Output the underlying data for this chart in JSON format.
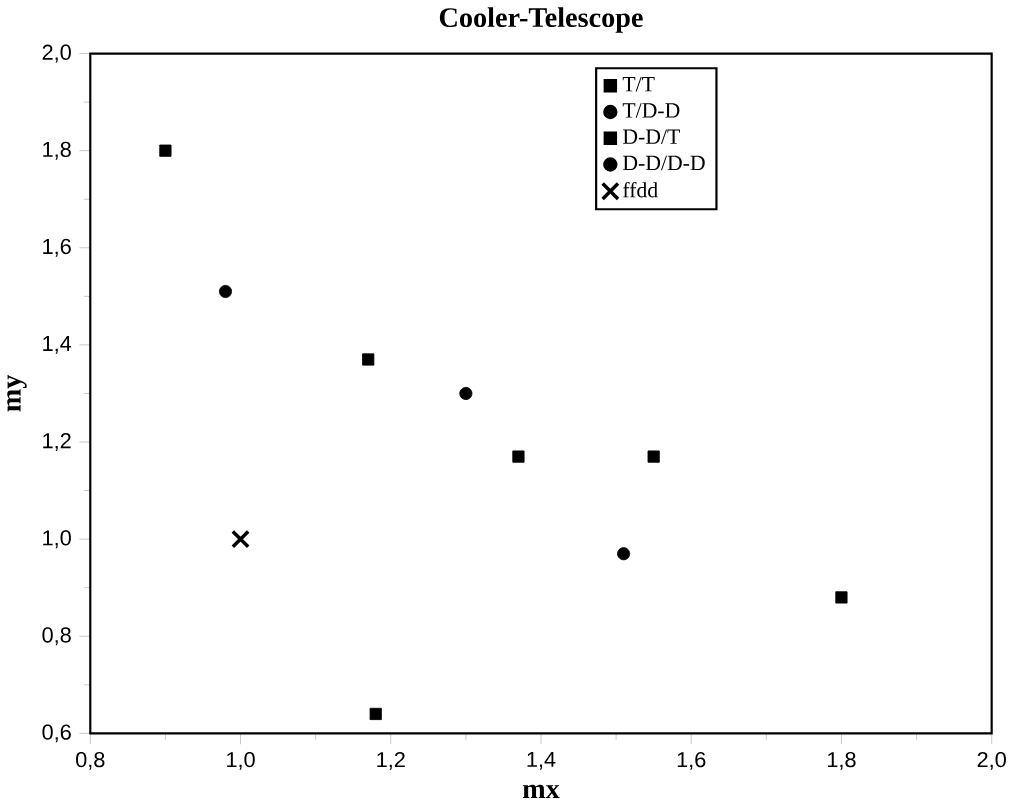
{
  "chart_data": {
    "type": "scatter",
    "title": "Cooler-Telescope",
    "xlabel": "mx",
    "ylabel": "my",
    "xlim": [
      0.8,
      2.0
    ],
    "ylim": [
      0.6,
      2.0
    ],
    "xticks": [
      {
        "value": 0.8,
        "label": "0,8"
      },
      {
        "value": 1.0,
        "label": "1,0"
      },
      {
        "value": 1.2,
        "label": "1,2"
      },
      {
        "value": 1.4,
        "label": "1,4"
      },
      {
        "value": 1.6,
        "label": "1,6"
      },
      {
        "value": 1.8,
        "label": "1,8"
      },
      {
        "value": 2.0,
        "label": "2,0"
      }
    ],
    "yticks": [
      {
        "value": 0.6,
        "label": "0,6"
      },
      {
        "value": 0.8,
        "label": "0,8"
      },
      {
        "value": 1.0,
        "label": "1,0"
      },
      {
        "value": 1.2,
        "label": "1,2"
      },
      {
        "value": 1.4,
        "label": "1,4"
      },
      {
        "value": 1.6,
        "label": "1,6"
      },
      {
        "value": 1.8,
        "label": "1,8"
      },
      {
        "value": 2.0,
        "label": "2,0"
      }
    ],
    "grid": false,
    "legend": "top right",
    "series": [
      {
        "name": "T/T",
        "color": "#000000",
        "marker": "square",
        "x": [
          0.9,
          1.17,
          1.37,
          1.8
        ],
        "values": [
          1.8,
          1.37,
          1.17,
          0.88
        ]
      },
      {
        "name": "T/D-D",
        "color": "#000000",
        "marker": "circle",
        "x": [
          0.98,
          1.51
        ],
        "values": [
          1.51,
          0.97
        ]
      },
      {
        "name": "D-D/T",
        "color": "#000000",
        "marker": "square",
        "x": [
          1.18,
          1.55
        ],
        "values": [
          0.64,
          1.17
        ]
      },
      {
        "name": "D-D/D-D",
        "color": "#000000",
        "marker": "circle",
        "x": [
          1.3
        ],
        "values": [
          1.3
        ]
      },
      {
        "name": "ffdd",
        "color": "#000000",
        "marker": "cross",
        "x": [
          1.0
        ],
        "values": [
          1.0
        ]
      }
    ]
  }
}
